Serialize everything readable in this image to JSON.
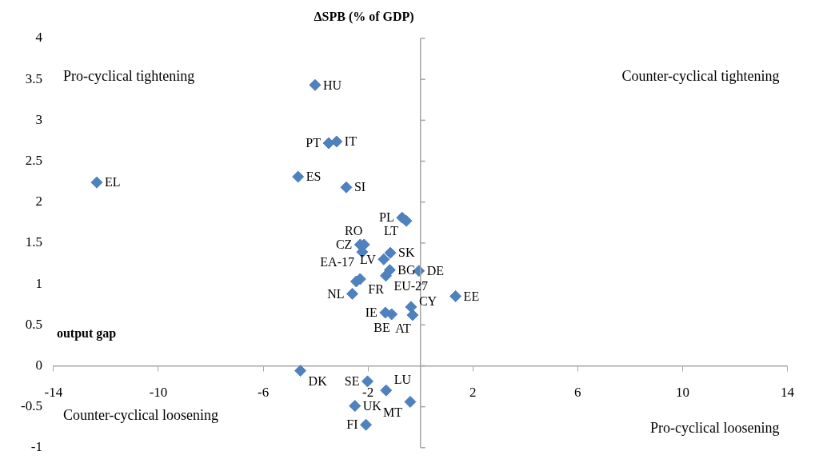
{
  "chart_data": {
    "type": "scatter",
    "xlabel": "output gap",
    "ylabel": "ΔSPB (% of GDP)",
    "xlim": [
      -14,
      14
    ],
    "xticks": [
      -14,
      -10,
      -6,
      -2,
      2,
      6,
      10,
      14
    ],
    "ylim": [
      -1,
      4
    ],
    "yticks": [
      -1,
      -0.5,
      0,
      0.5,
      1,
      1.5,
      2,
      2.5,
      3,
      3.5,
      4
    ],
    "grid": false,
    "legend": false,
    "marker": "diamond",
    "annotations": [
      "Pro-cyclical tightening",
      "Counter-cyclical tightening",
      "Counter-cyclical loosening",
      "Pro-cyclical loosening"
    ],
    "series": [
      {
        "name": "HU",
        "color": "#4f81bd",
        "x": [
          -4.02
        ],
        "values": [
          3.43
        ]
      },
      {
        "name": "PT",
        "color": "#4f81bd",
        "x": [
          -3.5
        ],
        "values": [
          2.72
        ]
      },
      {
        "name": "IT",
        "color": "#4f81bd",
        "x": [
          -3.2
        ],
        "values": [
          2.74
        ]
      },
      {
        "name": "ES",
        "color": "#4f81bd",
        "x": [
          -4.67
        ],
        "values": [
          2.31
        ]
      },
      {
        "name": "SI",
        "color": "#4f81bd",
        "x": [
          -2.83
        ],
        "values": [
          2.18
        ]
      },
      {
        "name": "EL",
        "color": "#4f81bd",
        "x": [
          -12.35
        ],
        "values": [
          2.24
        ]
      },
      {
        "name": "PL",
        "color": "#4f81bd",
        "x": [
          -0.7
        ],
        "values": [
          1.81
        ]
      },
      {
        "name": "LT",
        "color": "#4f81bd",
        "x": [
          -0.54
        ],
        "values": [
          1.77
        ]
      },
      {
        "name": "CZ",
        "color": "#4f81bd",
        "x": [
          -2.3
        ],
        "values": [
          1.48
        ]
      },
      {
        "name": "RO",
        "color": "#4f81bd",
        "x": [
          -2.15
        ],
        "values": [
          1.48
        ]
      },
      {
        "name": "EA-17",
        "color": "#4f81bd",
        "x": [
          -2.22
        ],
        "values": [
          1.39
        ]
      },
      {
        "name": "SK",
        "color": "#4f81bd",
        "x": [
          -1.15
        ],
        "values": [
          1.38
        ]
      },
      {
        "name": "LV",
        "color": "#4f81bd",
        "x": [
          -1.4
        ],
        "values": [
          1.3
        ]
      },
      {
        "name": "BG",
        "color": "#4f81bd",
        "x": [
          -1.17
        ],
        "values": [
          1.17
        ]
      },
      {
        "name": "EU-27",
        "color": "#4f81bd",
        "x": [
          -1.32
        ],
        "values": [
          1.1
        ]
      },
      {
        "name": "DE",
        "color": "#4f81bd",
        "x": [
          -0.06
        ],
        "values": [
          1.16
        ]
      },
      {
        "name": "FR",
        "color": "#4f81bd",
        "x": [
          -2.3
        ],
        "values": [
          1.06
        ]
      },
      {
        "color": "#4f81bd",
        "x": [
          -2.45
        ],
        "values": [
          1.03
        ]
      },
      {
        "name": "NL",
        "color": "#4f81bd",
        "x": [
          -2.6
        ],
        "values": [
          0.88
        ]
      },
      {
        "name": "EE",
        "color": "#4f81bd",
        "x": [
          1.34
        ],
        "values": [
          0.85
        ]
      },
      {
        "name": "IE",
        "color": "#4f81bd",
        "x": [
          -1.34
        ],
        "values": [
          0.65
        ]
      },
      {
        "name": "BE",
        "color": "#4f81bd",
        "x": [
          -1.1
        ],
        "values": [
          0.63
        ]
      },
      {
        "name": "CY",
        "color": "#4f81bd",
        "x": [
          -0.36
        ],
        "values": [
          0.72
        ]
      },
      {
        "name": "AT",
        "color": "#4f81bd",
        "x": [
          -0.3
        ],
        "values": [
          0.62
        ]
      },
      {
        "name": "DK",
        "color": "#4f81bd",
        "x": [
          -4.58
        ],
        "values": [
          -0.06
        ]
      },
      {
        "name": "SE",
        "color": "#4f81bd",
        "x": [
          -2.02
        ],
        "values": [
          -0.19
        ]
      },
      {
        "name": "LU",
        "color": "#4f81bd",
        "x": [
          -1.31
        ],
        "values": [
          -0.3
        ]
      },
      {
        "name": "MT",
        "color": "#4f81bd",
        "x": [
          -0.39
        ],
        "values": [
          -0.44
        ]
      },
      {
        "name": "UK",
        "color": "#4f81bd",
        "x": [
          -2.5
        ],
        "values": [
          -0.49
        ]
      },
      {
        "name": "FI",
        "color": "#4f81bd",
        "x": [
          -2.08
        ],
        "values": [
          -0.72
        ]
      }
    ]
  }
}
